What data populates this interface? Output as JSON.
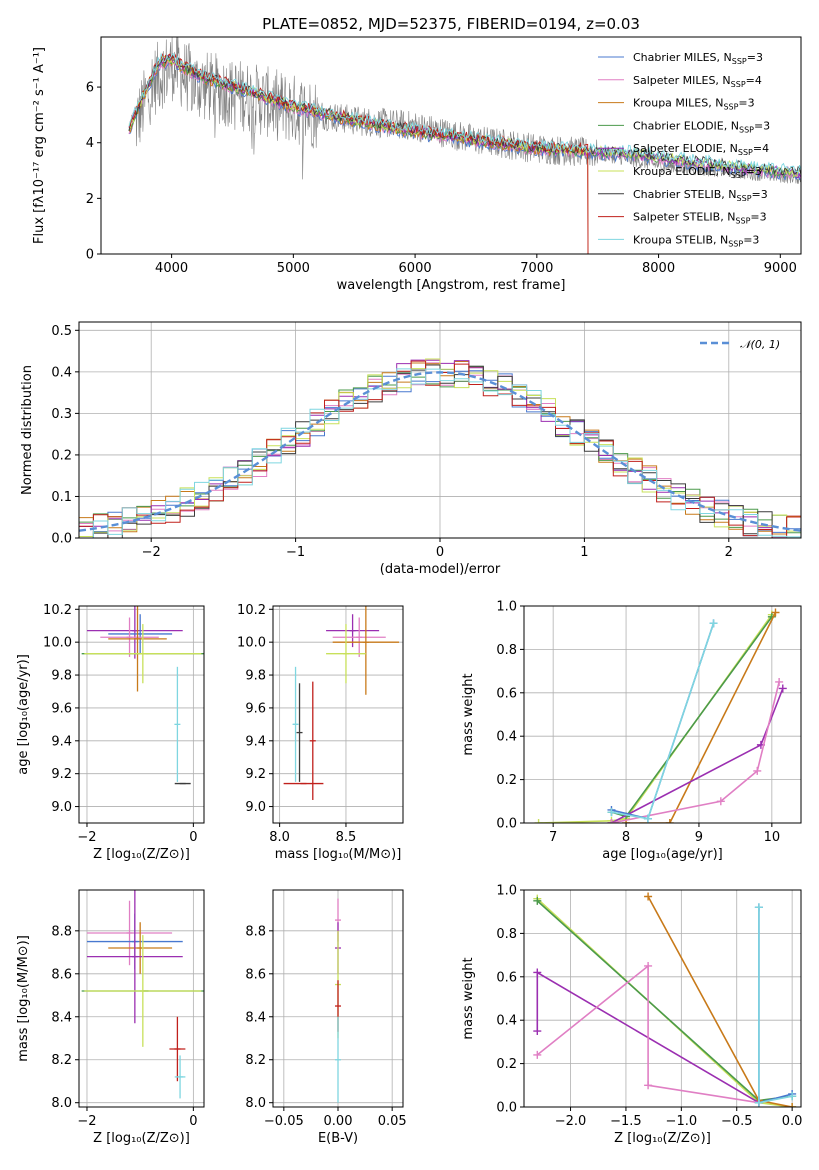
{
  "colors": {
    "c0": "#4878cf",
    "c1": "#e07fc4",
    "c2": "#c87a1a",
    "c3": "#4b9a4b",
    "c4": "#9b2fb1",
    "c5": "#c8e05a",
    "c6": "#3c3c3c",
    "c7": "#c0201c",
    "c8": "#7fd6e0",
    "grey": "#808080",
    "gauss": "#5a8fd6"
  },
  "chart_data": [
    {
      "id": "spectrum",
      "type": "line",
      "title": "PLATE=0852, MJD=52375, FIBERID=0194, z=0.03",
      "xlabel": "wavelength [Angstrom, rest frame]",
      "ylabel": "Flux [fλ10⁻¹⁷ erg cm⁻² s⁻¹ A⁻¹]",
      "xlim": [
        3420,
        9170
      ],
      "ylim": [
        0,
        7.8
      ],
      "xticks": [
        4000,
        5000,
        6000,
        7000,
        8000,
        9000
      ],
      "yticks": [
        0,
        2,
        4,
        6
      ],
      "grid": false,
      "legend_position": "upper-right",
      "legend": [
        {
          "name": "Chabrier MILES, N",
          "sub": "SSP",
          "suffix": "=3",
          "color": "c0"
        },
        {
          "name": "Salpeter MILES, N",
          "sub": "SSP",
          "suffix": "=4",
          "color": "c1"
        },
        {
          "name": "Kroupa MILES, N",
          "sub": "SSP",
          "suffix": "=3",
          "color": "c2"
        },
        {
          "name": "Chabrier ELODIE, N",
          "sub": "SSP",
          "suffix": "=3",
          "color": "c3"
        },
        {
          "name": "Salpeter ELODIE, N",
          "sub": "SSP",
          "suffix": "=4",
          "color": "c4"
        },
        {
          "name": "Kroupa ELODIE, N",
          "sub": "SSP",
          "suffix": "=3",
          "color": "c5"
        },
        {
          "name": "Chabrier STELIB, N",
          "sub": "SSP",
          "suffix": "=3",
          "color": "c6"
        },
        {
          "name": "Salpeter STELIB, N",
          "sub": "SSP",
          "suffix": "=3",
          "color": "c7"
        },
        {
          "name": "Kroupa STELIB, N",
          "sub": "SSP",
          "suffix": "=3",
          "color": "c8"
        }
      ],
      "data_wave": [
        3700,
        3850,
        4000,
        4200,
        4500,
        5000,
        5500,
        6000,
        6500,
        7000,
        7500,
        8000,
        8500,
        9000,
        9170
      ],
      "data_flux": [
        4.6,
        6.2,
        6.8,
        6.1,
        5.8,
        5.2,
        4.8,
        4.6,
        4.1,
        3.8,
        3.6,
        3.2,
        3.0,
        2.8,
        2.75
      ],
      "model_wave": [
        3650,
        3800,
        3900,
        4000,
        4100,
        4300,
        4600,
        5000,
        5500,
        6000,
        6500,
        7000,
        7420,
        7800,
        8300,
        8800,
        9170
      ],
      "model_flux": [
        4.5,
        6.0,
        6.9,
        7.0,
        6.7,
        6.3,
        5.9,
        5.3,
        4.8,
        4.4,
        4.1,
        3.8,
        3.7,
        3.6,
        3.3,
        3.05,
        2.9
      ]
    },
    {
      "id": "residuals",
      "type": "step",
      "xlabel": "(data-model)/error",
      "ylabel": "Normed distribution",
      "xlim": [
        -2.5,
        2.5
      ],
      "ylim": [
        0,
        0.52
      ],
      "xticks": [
        -2,
        -1,
        0,
        1,
        2
      ],
      "yticks": [
        0.0,
        0.1,
        0.2,
        0.3,
        0.4,
        0.5
      ],
      "grid": true,
      "legend_position": "upper-right",
      "legend": [
        {
          "name": "𝒩(0, 1)",
          "color": "gauss",
          "style": "dashed"
        }
      ],
      "bin_width": 0.1
    },
    {
      "id": "age_vs_Z",
      "type": "errorbar",
      "xlabel": "Z [log₁₀(Z/Z⊙)]",
      "ylabel": "age  [log₁₀(age/yr)]",
      "xlim": [
        -2.15,
        0.2
      ],
      "ylim": [
        8.9,
        10.22
      ],
      "xticks": [
        -2,
        0
      ],
      "yticks": [
        9.0,
        9.2,
        9.4,
        9.6,
        9.8,
        10.0,
        10.2
      ],
      "grid": true,
      "points": [
        {
          "x": -1.1,
          "xerr": 0.9,
          "y": 10.07,
          "yerr": 0.17,
          "color": "c4"
        },
        {
          "x": -1.0,
          "xerr": 0.6,
          "y": 10.05,
          "yerr": 0.12,
          "color": "c0"
        },
        {
          "x": -1.2,
          "xerr": 0.55,
          "y": 10.03,
          "yerr": 0.12,
          "color": "c1"
        },
        {
          "x": -1.05,
          "xerr": 0.55,
          "y": 10.02,
          "yerr": 0.32,
          "color": "c2"
        },
        {
          "x": -0.9,
          "xerr": 1.2,
          "y": 9.93,
          "yerr": 0.0,
          "color": "c3"
        },
        {
          "x": -0.95,
          "xerr": 1.1,
          "y": 9.93,
          "yerr": 0.18,
          "color": "c5"
        },
        {
          "x": -0.3,
          "xerr": 0.0,
          "y": 9.5,
          "yerr": 0.35,
          "color": "c8"
        },
        {
          "x": -0.2,
          "xerr": 0.15,
          "y": 9.14,
          "yerr": 0.0,
          "color": "c6"
        }
      ]
    },
    {
      "id": "age_vs_mass",
      "type": "errorbar",
      "xlabel": "mass [log₁₀(M/M⊙)]",
      "ylabel": "",
      "xlim": [
        7.95,
        8.93
      ],
      "ylim": [
        8.9,
        10.22
      ],
      "xticks": [
        8.0,
        8.5
      ],
      "yticks": [
        9.0,
        9.2,
        9.4,
        9.6,
        9.8,
        10.0,
        10.2
      ],
      "grid": true,
      "points": [
        {
          "x": 8.55,
          "xerr": 0.2,
          "y": 10.07,
          "yerr": 0.1,
          "color": "c4"
        },
        {
          "x": 8.6,
          "xerr": 0.2,
          "y": 10.03,
          "yerr": 0.12,
          "color": "c1"
        },
        {
          "x": 8.65,
          "xerr": 0.25,
          "y": 10.0,
          "yerr": 0.32,
          "color": "c2"
        },
        {
          "x": 8.5,
          "xerr": 0.15,
          "y": 9.93,
          "yerr": 0.18,
          "color": "c5"
        },
        {
          "x": 8.15,
          "xerr": 0.0,
          "y": 9.45,
          "yerr": 0.3,
          "color": "c6"
        },
        {
          "x": 8.25,
          "xerr": 0.0,
          "y": 9.4,
          "yerr": 0.36,
          "color": "c7"
        },
        {
          "x": 8.18,
          "xerr": 0.15,
          "y": 9.14,
          "yerr": 0.0,
          "color": "c7"
        },
        {
          "x": 8.12,
          "xerr": 0.02,
          "y": 9.5,
          "yerr": 0.35,
          "color": "c8"
        }
      ]
    },
    {
      "id": "weight_vs_age",
      "type": "line",
      "xlabel": "age  [log₁₀(age/yr)]",
      "ylabel": "mass weight",
      "xlim": [
        6.6,
        10.4
      ],
      "ylim": [
        0,
        1.0
      ],
      "xticks": [
        7,
        8,
        9,
        10
      ],
      "yticks": [
        0.0,
        0.2,
        0.4,
        0.6,
        0.8,
        1.0
      ],
      "grid": true,
      "series": [
        {
          "color": "c5",
          "x": [
            6.8,
            7.8,
            8.0,
            10.0
          ],
          "y": [
            0.0,
            0.01,
            0.02,
            0.96
          ]
        },
        {
          "color": "c3",
          "x": [
            7.8,
            8.0,
            10.0
          ],
          "y": [
            0.05,
            0.03,
            0.95
          ]
        },
        {
          "color": "c2",
          "x": [
            8.0,
            8.6,
            10.05
          ],
          "y": [
            0.0,
            0.0,
            0.97
          ]
        },
        {
          "color": "c4",
          "x": [
            7.8,
            9.85,
            10.15
          ],
          "y": [
            0.0,
            0.36,
            0.62
          ]
        },
        {
          "color": "c1",
          "x": [
            7.8,
            9.3,
            9.8,
            10.1
          ],
          "y": [
            0.0,
            0.1,
            0.24,
            0.65
          ]
        },
        {
          "color": "c0",
          "x": [
            7.8,
            8.3,
            9.2
          ],
          "y": [
            0.06,
            0.02,
            0.92
          ]
        },
        {
          "color": "c8",
          "x": [
            7.8,
            8.3,
            9.2
          ],
          "y": [
            0.05,
            0.02,
            0.92
          ]
        }
      ]
    },
    {
      "id": "mass_vs_Z",
      "type": "errorbar",
      "xlabel": "Z [log₁₀(Z/Z⊙)]",
      "ylabel": "mass [log₁₀(M/M⊙)]",
      "xlim": [
        -2.15,
        0.2
      ],
      "ylim": [
        7.98,
        8.99
      ],
      "xticks": [
        -2,
        0
      ],
      "yticks": [
        8.0,
        8.2,
        8.4,
        8.6,
        8.8
      ],
      "grid": true,
      "points": [
        {
          "x": -1.2,
          "xerr": 0.8,
          "y": 8.79,
          "yerr": 0.15,
          "color": "c1"
        },
        {
          "x": -1.1,
          "xerr": 0.9,
          "y": 8.75,
          "yerr": 0.13,
          "color": "c0"
        },
        {
          "x": -1.0,
          "xerr": 0.6,
          "y": 8.72,
          "yerr": 0.12,
          "color": "c2"
        },
        {
          "x": -1.1,
          "xerr": 0.9,
          "y": 8.68,
          "yerr": 0.31,
          "color": "c4"
        },
        {
          "x": -0.9,
          "xerr": 1.2,
          "y": 8.52,
          "yerr": 0.0,
          "color": "c3"
        },
        {
          "x": -0.95,
          "xerr": 1.1,
          "y": 8.52,
          "yerr": 0.26,
          "color": "c5"
        },
        {
          "x": -0.3,
          "xerr": 0.15,
          "y": 8.25,
          "yerr": 0.15,
          "color": "c7"
        },
        {
          "x": -0.25,
          "xerr": 0.1,
          "y": 8.12,
          "yerr": 0.1,
          "color": "c8"
        }
      ]
    },
    {
      "id": "mass_vs_ebv",
      "type": "errorbar",
      "xlabel": "E(B-V)",
      "ylabel": "",
      "xlim": [
        -0.06,
        0.06
      ],
      "ylim": [
        7.98,
        8.99
      ],
      "xticks": [
        -0.05,
        0.0,
        0.05
      ],
      "yticks": [
        8.0,
        8.2,
        8.4,
        8.6,
        8.8
      ],
      "grid": true,
      "points": [
        {
          "x": 0.0,
          "xerr": 0.0,
          "y": 8.85,
          "yerr": 0.1,
          "color": "c1"
        },
        {
          "x": 0.0,
          "xerr": 0.0,
          "y": 8.72,
          "yerr": 0.12,
          "color": "c4"
        },
        {
          "x": 0.0,
          "xerr": 0.0,
          "y": 8.55,
          "yerr": 0.25,
          "color": "c5"
        },
        {
          "x": 0.0,
          "xerr": 0.0,
          "y": 8.45,
          "yerr": 0.12,
          "color": "c7"
        },
        {
          "x": 0.0,
          "xerr": 0.0,
          "y": 8.2,
          "yerr": 0.2,
          "color": "c8"
        }
      ]
    },
    {
      "id": "weight_vs_Z",
      "type": "line",
      "xlabel": "Z [log₁₀(Z/Z⊙)]",
      "ylabel": "mass weight",
      "xlim": [
        -2.42,
        0.08
      ],
      "ylim": [
        0,
        1.0
      ],
      "xticks": [
        -2.0,
        -1.5,
        -1.0,
        -0.5,
        0.0
      ],
      "yticks": [
        0.0,
        0.2,
        0.4,
        0.6,
        0.8,
        1.0
      ],
      "grid": true,
      "series": [
        {
          "color": "c5",
          "x": [
            -2.3,
            -0.3,
            0.0
          ],
          "y": [
            0.96,
            0.02,
            0.0
          ]
        },
        {
          "color": "c3",
          "x": [
            -2.3,
            -0.3,
            0.0
          ],
          "y": [
            0.95,
            0.03,
            0.05
          ]
        },
        {
          "color": "c2",
          "x": [
            -1.3,
            -0.3,
            0.0
          ],
          "y": [
            0.97,
            0.03,
            0.0
          ]
        },
        {
          "color": "c4",
          "x": [
            -2.3,
            -2.3,
            -0.3
          ],
          "y": [
            0.35,
            0.62,
            0.02
          ]
        },
        {
          "color": "c1",
          "x": [
            -2.3,
            -1.3,
            -1.3,
            -0.3
          ],
          "y": [
            0.24,
            0.65,
            0.1,
            0.02
          ]
        },
        {
          "color": "c0",
          "x": [
            -0.3,
            -0.3,
            0.0
          ],
          "y": [
            0.92,
            0.02,
            0.06
          ]
        },
        {
          "color": "c8",
          "x": [
            -0.3,
            -0.3,
            0.0
          ],
          "y": [
            0.92,
            0.02,
            0.05
          ]
        }
      ]
    }
  ]
}
